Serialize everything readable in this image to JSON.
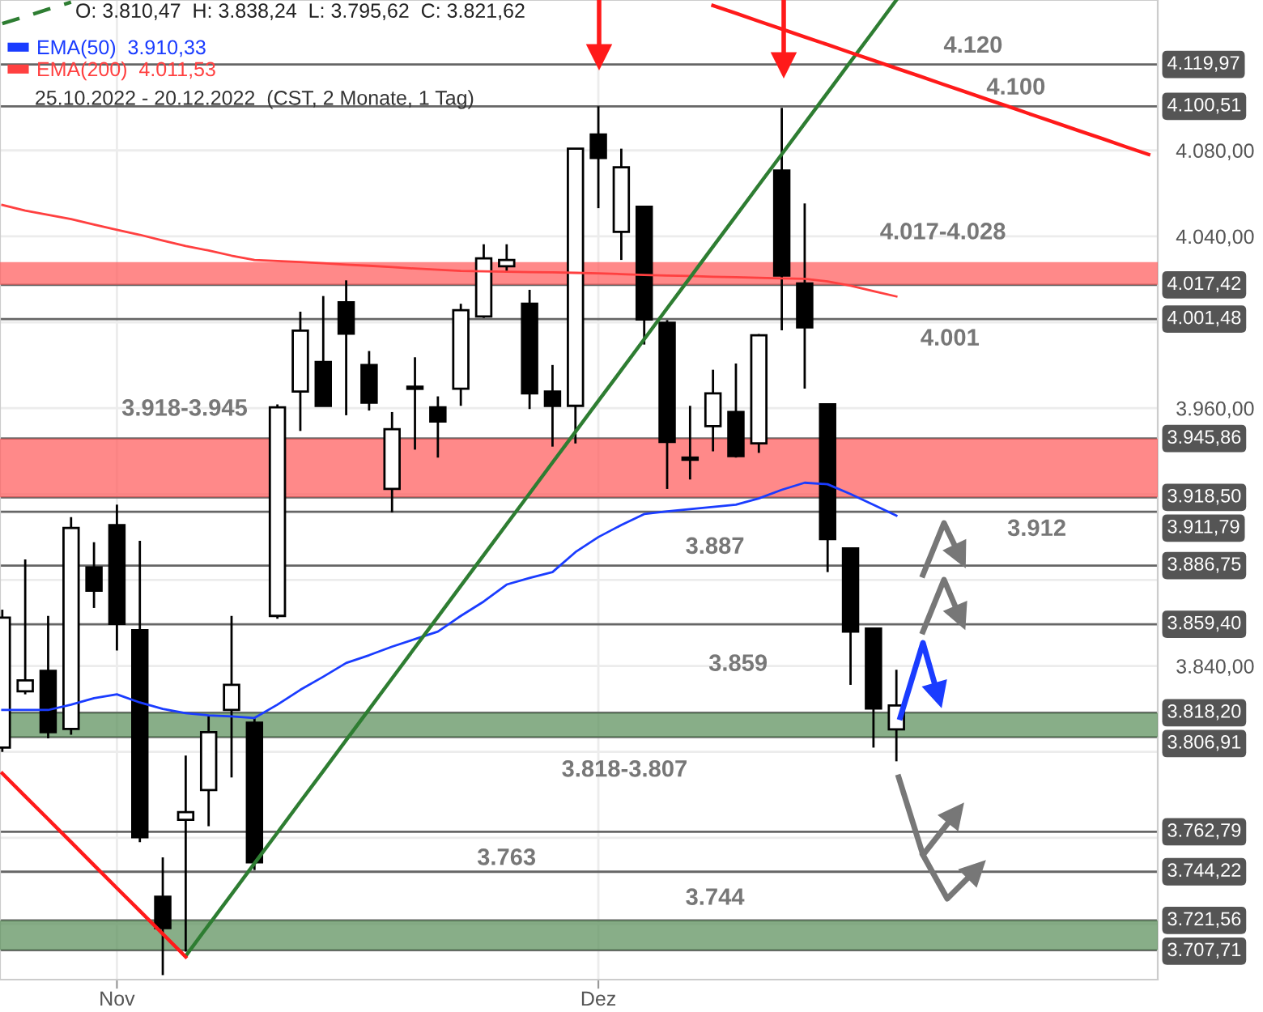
{
  "chart_data": {
    "type": "candlestick",
    "title": "O: 3.810,47  H: 3.838,24  L: 3.795,62  C: 3.821,62",
    "subtitle": "25.10.2022 - 20.12.2022  (CST, 2 Monate, 1 Tag)",
    "categories": [
      null,
      null,
      null,
      null,
      null,
      "Nov",
      null,
      null,
      null,
      null,
      null,
      null,
      null,
      null,
      null,
      null,
      null,
      null,
      null,
      null,
      null,
      null,
      null,
      null,
      null,
      null,
      "Dez",
      null,
      null,
      null,
      null,
      null,
      null,
      null,
      null,
      null,
      null,
      null,
      null,
      null,
      null,
      null,
      null,
      null,
      null,
      null,
      null,
      null,
      null,
      null,
      null
    ],
    "ylim": [
      3694,
      4150
    ],
    "yticks": [
      {
        "value": 3720,
        "label": null
      },
      {
        "value": 3760,
        "label": null
      },
      {
        "value": 3800,
        "label": null
      },
      {
        "value": 3840,
        "label": "3.840,00"
      },
      {
        "value": 3880,
        "label": null
      },
      {
        "value": 3920,
        "label": null
      },
      {
        "value": 3960,
        "label": "3.960,00"
      },
      {
        "value": 4000,
        "label": null
      },
      {
        "value": 4040,
        "label": "4.040,00"
      },
      {
        "value": 4080,
        "label": "4.080,00"
      },
      {
        "value": 4120,
        "label": null
      }
    ],
    "grid": true,
    "legend": "top left",
    "series": [
      {
        "type": "line",
        "name": "EMA(50)  3.910,33",
        "color": "#1a3cff",
        "values": [
          3819.5,
          3819.5,
          3819.5,
          3822,
          3825,
          3826.8,
          3823,
          3820,
          3818,
          3817,
          3816.5,
          3815.8,
          3822,
          3828.9,
          3835,
          3841.4,
          3845,
          3849,
          3852.5,
          3856,
          3863.3,
          3870,
          3877.9,
          3881,
          3883.7,
          3893,
          3900,
          3905.6,
          3910.7,
          3912,
          3913,
          3914,
          3915.1,
          3918,
          3922,
          3925.3,
          3924.6,
          3920,
          3915,
          3910,
          null,
          null,
          null,
          null,
          null,
          null,
          null,
          null,
          null,
          null,
          null
        ]
      },
      {
        "type": "line",
        "name": "EMA(200)  4.011,53",
        "color": "#ff4040",
        "values": [
          4054.6,
          4052,
          4050,
          4048,
          4045.5,
          4043,
          4040.7,
          4038,
          4035.5,
          4033.4,
          4031,
          4029,
          4028.5,
          4028,
          4027.5,
          4026.8,
          4026.3,
          4025.7,
          4025,
          4024.5,
          4023.9,
          4023.7,
          4023.5,
          4023.3,
          4023.2,
          4023,
          4022.8,
          4022.4,
          4022,
          4021.7,
          4021.5,
          4021.2,
          4021,
          4020.7,
          4020.4,
          4020.2,
          4019,
          4017,
          4014.5,
          4012,
          null,
          null,
          null,
          null,
          null,
          null,
          null,
          null,
          null,
          null,
          null
        ]
      },
      {
        "type": "line",
        "color": "#2e7d32",
        "values": [
          null,
          null,
          null,
          null,
          null,
          null,
          null,
          null,
          3705,
          3719.4,
          3733.7,
          3748.1,
          3762.4,
          3776.8,
          3791.1,
          3805.5,
          3819.8,
          3834.2,
          3848.6,
          3862.9,
          3877.3,
          3891.6,
          3906,
          3920.3,
          3934.7,
          3949,
          3963.4,
          3977.7,
          3992.1,
          4006.5,
          4020.8,
          4035.2,
          4049.5,
          4063.9,
          4078.2,
          4092.6,
          4106.9,
          4121.3,
          4135.6,
          4150,
          null,
          null,
          null,
          null,
          null,
          null,
          null,
          null,
          null,
          null,
          null
        ]
      },
      {
        "type": "line",
        "color": "#2e7d32",
        "line_style": "dashed",
        "values": [
          4139,
          4142.3,
          4145.7,
          4149,
          null,
          null,
          null,
          null,
          null,
          null,
          null,
          null,
          null,
          null,
          null,
          null,
          null,
          null,
          null,
          null,
          null,
          null,
          null,
          null,
          null,
          null,
          null,
          null,
          null,
          null,
          null,
          null,
          null,
          null,
          null,
          null,
          null,
          null,
          null,
          null,
          null,
          null,
          null,
          null,
          null,
          null,
          null,
          null,
          null,
          null,
          null
        ]
      },
      {
        "type": "line",
        "color": "#ff1a1a",
        "values": [
          3790,
          3779.3,
          3768.7,
          3758,
          3747.3,
          3736.6,
          3726,
          3715.3,
          3704.6,
          null,
          null,
          null,
          null,
          null,
          null,
          null,
          null,
          null,
          null,
          null,
          null,
          null,
          null,
          null,
          null,
          null,
          null,
          null,
          null,
          null,
          null,
          null,
          null,
          null,
          null,
          null,
          null,
          null,
          null,
          null,
          null,
          null,
          null,
          null,
          null,
          null,
          null,
          null,
          null,
          null,
          null
        ]
      },
      {
        "type": "line",
        "color": "#ff1a1a",
        "values": [
          null,
          null,
          null,
          null,
          null,
          null,
          null,
          null,
          null,
          null,
          null,
          null,
          null,
          null,
          null,
          null,
          null,
          null,
          null,
          null,
          null,
          null,
          null,
          null,
          null,
          null,
          null,
          null,
          null,
          null,
          null,
          4147.4,
          4143.8,
          4140.1,
          4136.5,
          4132.8,
          4129.2,
          4125.5,
          4121.9,
          4118.2,
          4114.6,
          4110.9,
          4107.3,
          4103.6,
          4100,
          4096.3,
          4092.7,
          4089,
          4085.4,
          4081.7,
          4078.1
        ]
      },
      {
        "color": "#000000",
        "ohlc": [
          [
            3802,
            3866.2,
            3800,
            3862.5
          ],
          [
            3828.2,
            3889.6,
            3826.8,
            3833.3
          ],
          [
            3837.7,
            3863.3,
            3806.3,
            3809.2
          ],
          [
            3810.7,
            3909.3,
            3808,
            3904.2
          ],
          [
            3885.9,
            3897.6,
            3867,
            3875
          ],
          [
            3905.6,
            3915.1,
            3847.2,
            3859.6
          ],
          [
            3856.7,
            3898.3,
            3758,
            3760.3
          ],
          [
            3732.6,
            3750.9,
            3696.1,
            3718
          ],
          [
            3768.4,
            3798.3,
            3707,
            3772
          ],
          [
            3782.2,
            3816.5,
            3765.4,
            3809.2
          ],
          [
            3819.5,
            3863.3,
            3788.1,
            3831.2
          ],
          [
            3813.6,
            3815.8,
            3745,
            3748.6
          ],
          [
            3863.3,
            3961.8,
            3862,
            3960.4
          ],
          [
            3967.7,
            4004.9,
            3949.4,
            3996.1
          ],
          [
            3981.5,
            4012.2,
            3961,
            3961.1
          ],
          [
            4009.3,
            4019.5,
            3956.7,
            3994.7
          ],
          [
            3980.1,
            3986.6,
            3958.9,
            3962.6
          ],
          [
            3922.4,
            3958.2,
            3911.5,
            3950.2
          ],
          [
            3969,
            3983.7,
            3940.7,
            3970
          ],
          [
            3960.4,
            3965.5,
            3937,
            3953.8
          ],
          [
            3969.1,
            4008.6,
            3961.1,
            4005.6
          ],
          [
            4002.7,
            4036.3,
            4002,
            4029.7
          ],
          [
            4026.1,
            4036.3,
            4023.2,
            4029
          ],
          [
            4008.6,
            4015.1,
            3959.6,
            3966.9
          ],
          [
            3967.7,
            3980.1,
            3942.1,
            3961.1
          ],
          [
            3961.1,
            4080.8,
            3943.6,
            4080.8
          ],
          [
            4087.4,
            4100.51,
            4053.1,
            4076.5
          ],
          [
            4042.1,
            4080.8,
            4029,
            4072.1
          ],
          [
            4053.8,
            4054,
            3989.6,
            4001.3
          ],
          [
            3999.8,
            4001,
            3922.4,
            3944.3
          ],
          [
            3937,
            3961.1,
            3926.8,
            3936
          ],
          [
            3951.6,
            3977.9,
            3939.9,
            3966.9
          ],
          [
            3958.2,
            3980.8,
            3937,
            3937.7
          ],
          [
            3943.6,
            3994.5,
            3939.2,
            3993.9
          ],
          [
            4070.6,
            4099.8,
            3996.2,
            4021.7
          ],
          [
            4018,
            4055.3,
            3969.1,
            3997.6
          ],
          [
            3961.8,
            3962,
            3883.7,
            3899.1
          ],
          [
            3894.7,
            3895,
            3831.2,
            3856
          ],
          [
            3857.4,
            3857.6,
            3802,
            3820.2
          ],
          [
            3810.47,
            3838.24,
            3795.62,
            3821.62
          ],
          null,
          null,
          null,
          null,
          null,
          null,
          null,
          null,
          null,
          null,
          null
        ]
      }
    ],
    "ref_lines": [
      {
        "axis": "y",
        "value": 4119.97,
        "label": "4.119,97",
        "color": "#666666"
      },
      {
        "axis": "y",
        "value": 4100.51,
        "label": "4.100,51",
        "color": "#666666"
      },
      {
        "axis": "y",
        "value": 4017.42,
        "label": "4.017,42",
        "color": "#666666"
      },
      {
        "axis": "y",
        "value": 4001.48,
        "label": "4.001,48",
        "color": "#666666"
      },
      {
        "axis": "y",
        "value": 3945.86,
        "label": "3.945,86",
        "color": "#666666"
      },
      {
        "axis": "y",
        "value": 3918.5,
        "label": "3.918,50",
        "color": "#666666"
      },
      {
        "axis": "y",
        "value": 3911.79,
        "label": "3.911,79",
        "color": "#666666"
      },
      {
        "axis": "y",
        "value": 3886.75,
        "label": "3.886,75",
        "color": "#666666"
      },
      {
        "axis": "y",
        "value": 3859.4,
        "label": "3.859,40",
        "color": "#666666"
      },
      {
        "axis": "y",
        "value": 3818.2,
        "label": "3.818,20",
        "color": "#666666"
      },
      {
        "axis": "y",
        "value": 3806.91,
        "label": "3.806,91",
        "color": "#666666"
      },
      {
        "axis": "y",
        "value": 3762.79,
        "label": "3.762,79",
        "color": "#666666"
      },
      {
        "axis": "y",
        "value": 3744.22,
        "label": "3.744,22",
        "color": "#666666"
      },
      {
        "axis": "y",
        "value": 3721.56,
        "label": "3.721,56",
        "color": "#666666"
      },
      {
        "axis": "y",
        "value": 3707.71,
        "label": "3.707,71",
        "color": "#666666"
      }
    ],
    "bands": [
      {
        "axis": "y",
        "from": 4017.42,
        "to": 4028,
        "label": "4.017-4.028",
        "color": "#ff5c5c"
      },
      {
        "axis": "y",
        "from": 3918.5,
        "to": 3945.86,
        "label": "3.918-3.945",
        "color": "#ff5c5c"
      },
      {
        "axis": "y",
        "from": 3806.91,
        "to": 3818.2,
        "label": "3.818-3.807",
        "color": "#5a8f5a"
      },
      {
        "axis": "y",
        "from": 3707.71,
        "to": 3721.56,
        "color": "#5a8f5a"
      }
    ],
    "annotations": [
      {
        "text": "4.120",
        "y": 4119.97
      },
      {
        "text": "4.100",
        "y": 4100.51
      },
      {
        "text": "4.001",
        "y": 4001.48
      },
      {
        "text": "3.912",
        "y": 3911.79
      },
      {
        "text": "3.887",
        "y": 3886.75
      },
      {
        "text": "3.859",
        "y": 3859.4
      },
      {
        "text": "3.763",
        "y": 3762.79
      },
      {
        "text": "3.744",
        "y": 3744.22
      }
    ]
  }
}
